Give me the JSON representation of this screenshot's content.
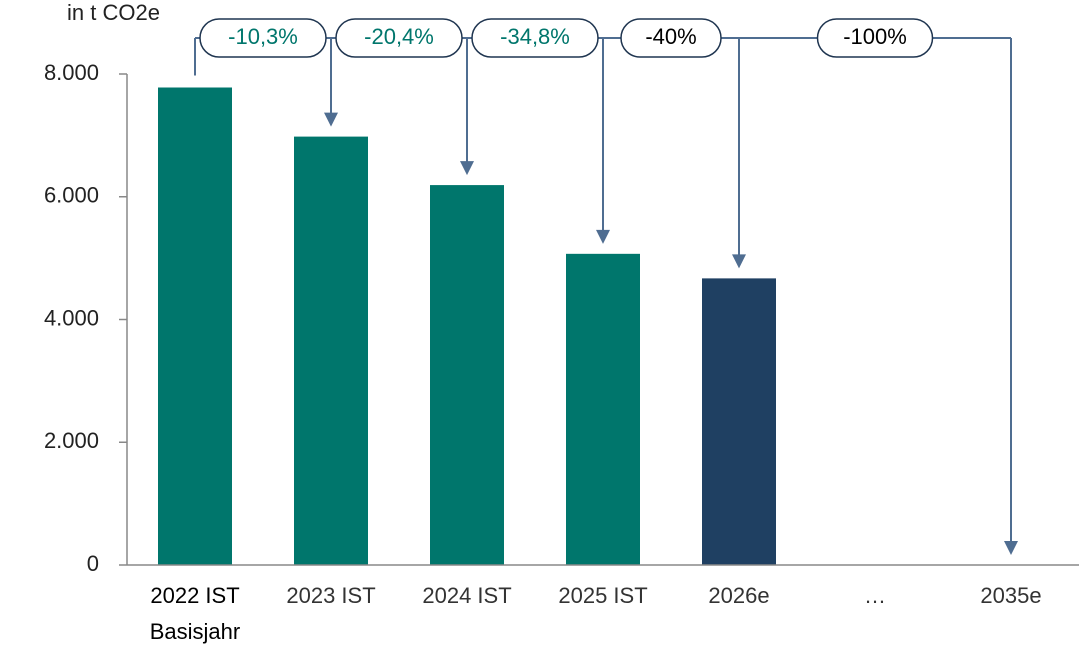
{
  "chart_data": {
    "type": "bar",
    "y_axis_label": "in t CO2e",
    "categories": [
      "2022 IST",
      "2023 IST",
      "2024 IST",
      "2025 IST",
      "2026e",
      "…",
      "2035e"
    ],
    "base_year_label": "Basisjahr",
    "values": [
      7780,
      6980,
      6190,
      5070,
      4670,
      null,
      null
    ],
    "colors": [
      "#00766c",
      "#00766c",
      "#00766c",
      "#00766c",
      "#1f4062",
      null,
      null
    ],
    "ylim": [
      0,
      8000
    ],
    "yticks": [
      0,
      {
        "value": 2000,
        "label": "2.000"
      },
      {
        "value": 4000,
        "label": "4.000"
      },
      {
        "value": 6000,
        "label": "6.000"
      },
      {
        "value": 8000,
        "label": "8.000"
      }
    ],
    "annotations": [
      {
        "label": "-10,3%",
        "color": "#00766c"
      },
      {
        "label": "-20,4%",
        "color": "#00766c"
      },
      {
        "label": "-34,8%",
        "color": "#00766c"
      },
      {
        "label": "-40%",
        "color": "#000000"
      },
      {
        "label": "-100%",
        "color": "#000000"
      }
    ],
    "arrow_color": "#4f6d91"
  }
}
